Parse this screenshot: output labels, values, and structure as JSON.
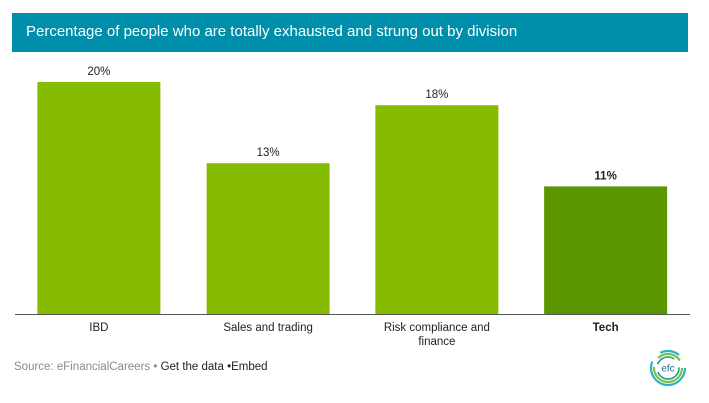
{
  "header": {
    "title": "Percentage of people who are totally exhausted and strung out by division"
  },
  "chart_data": {
    "type": "bar",
    "title": "Percentage of people who are totally exhausted and strung out by division",
    "categories": [
      "IBD",
      "Sales and trading",
      "Risk compliance and finance",
      "Tech"
    ],
    "category_lines": [
      [
        "IBD"
      ],
      [
        "Sales and trading"
      ],
      [
        "Risk compliance and",
        "finance"
      ],
      [
        "Tech"
      ]
    ],
    "values": [
      20,
      13,
      18,
      11
    ],
    "data_labels": [
      "20%",
      "13%",
      "18%",
      "11%"
    ],
    "highlighted": [
      false,
      false,
      false,
      true
    ],
    "unit": "%",
    "xlabel": "",
    "ylabel": "",
    "ylim": [
      0,
      20
    ],
    "grid": false,
    "legend": "none",
    "colors": {
      "bar": "#86BC00",
      "highlight": "#5B9600",
      "axis": "#555555",
      "title_bar": "#008FAA"
    }
  },
  "footer": {
    "source": "Source: eFinancialCareers",
    "separator": "•",
    "get_data": "Get the data",
    "embed": "•Embed"
  },
  "logo": {
    "text": "efc"
  }
}
